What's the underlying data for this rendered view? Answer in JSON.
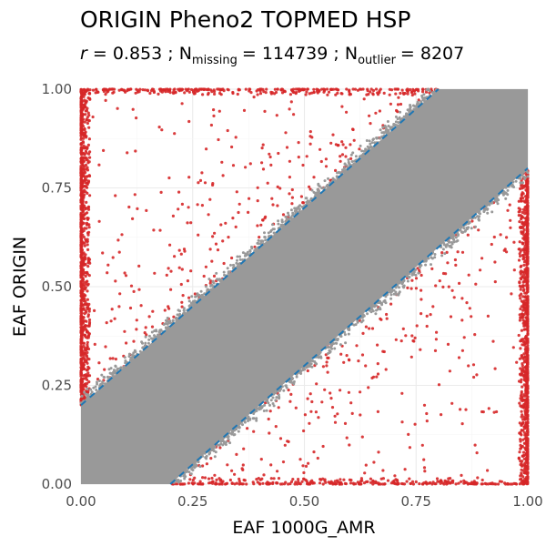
{
  "chart_data": {
    "type": "scatter",
    "title": "ORIGIN Pheno2 TOPMED HSP",
    "subtitle": {
      "r_symbol": "r",
      "r_value": "= 0.853 ;",
      "n_symbol": "N",
      "missing_sub": "missing",
      "missing_value": "= 114739 ;",
      "outlier_sub": "outlier",
      "outlier_value": "= 8207"
    },
    "xlabel": "EAF 1000G_AMR",
    "ylabel": "EAF ORIGIN",
    "xlim": [
      0,
      1
    ],
    "ylim": [
      0,
      1
    ],
    "x_ticks": [
      0,
      0.25,
      0.5,
      0.75,
      1
    ],
    "x_tick_labels": [
      "0.00",
      "0.25",
      "0.50",
      "0.75",
      "1.00"
    ],
    "y_ticks": [
      0,
      0.25,
      0.5,
      0.75,
      1
    ],
    "y_tick_labels": [
      "0.00",
      "0.25",
      "0.50",
      "0.75",
      "1.00"
    ],
    "grid": true,
    "series": [
      {
        "role": "concordant",
        "color": "#999999",
        "band_halfwidth": 0.2
      },
      {
        "role": "outlier",
        "color": "#d62728"
      }
    ],
    "reference_lines": [
      {
        "slope": 1,
        "intercept": 0.2,
        "color": "#1f77b4",
        "style": "dashed"
      },
      {
        "slope": 1,
        "intercept": -0.2,
        "color": "#1f77b4",
        "style": "dashed"
      }
    ]
  }
}
